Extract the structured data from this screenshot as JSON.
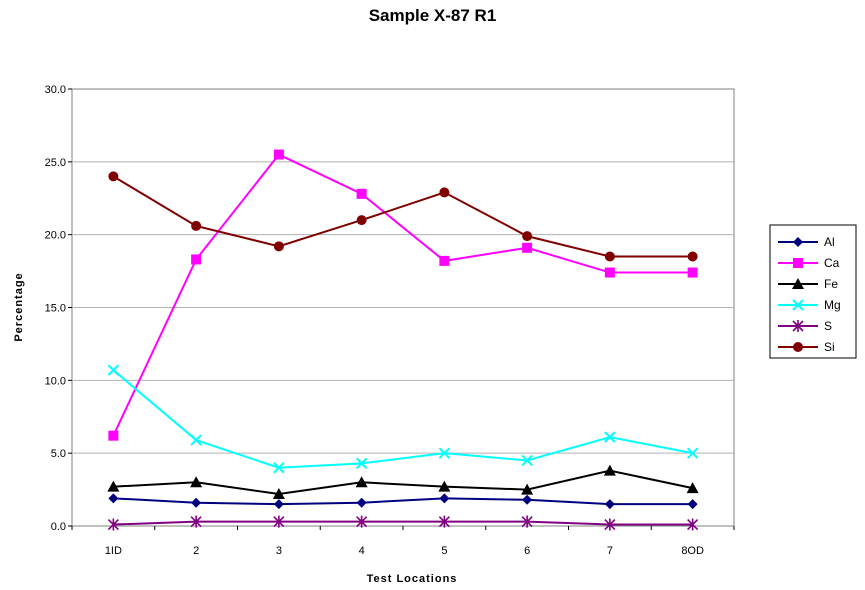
{
  "chart_data": {
    "type": "line",
    "title": "Sample X-87 R1",
    "xlabel": "Test Locations",
    "ylabel": "Percentage",
    "categories": [
      "1ID",
      "2",
      "3",
      "4",
      "5",
      "6",
      "7",
      "8OD"
    ],
    "ylim": [
      0,
      30
    ],
    "yticks": [
      "0.0",
      "5.0",
      "10.0",
      "15.0",
      "20.0",
      "25.0",
      "30.0"
    ],
    "grid": "horizontal",
    "legend_position": "right",
    "series": [
      {
        "name": "Al",
        "color": "#000080",
        "marker": "diamond",
        "values": [
          1.9,
          1.6,
          1.5,
          1.6,
          1.9,
          1.8,
          1.5,
          1.5
        ]
      },
      {
        "name": "Ca",
        "color": "#FF00FF",
        "marker": "square",
        "values": [
          6.2,
          18.3,
          25.5,
          22.8,
          18.2,
          19.1,
          17.4,
          17.4
        ]
      },
      {
        "name": "Fe",
        "color": "#000000",
        "marker": "triangle",
        "values": [
          2.7,
          3.0,
          2.2,
          3.0,
          2.7,
          2.5,
          3.8,
          2.6
        ]
      },
      {
        "name": "Mg",
        "color": "#00FFFF",
        "marker": "x",
        "values": [
          10.7,
          5.9,
          4.0,
          4.3,
          5.0,
          4.5,
          6.1,
          5.0
        ]
      },
      {
        "name": "S",
        "color": "#800080",
        "marker": "star",
        "values": [
          0.1,
          0.3,
          0.3,
          0.3,
          0.3,
          0.3,
          0.1,
          0.1
        ]
      },
      {
        "name": "Si",
        "color": "#800000",
        "marker": "circle",
        "values": [
          24.0,
          20.6,
          19.2,
          21.0,
          22.9,
          19.9,
          18.5,
          18.5
        ]
      }
    ]
  }
}
